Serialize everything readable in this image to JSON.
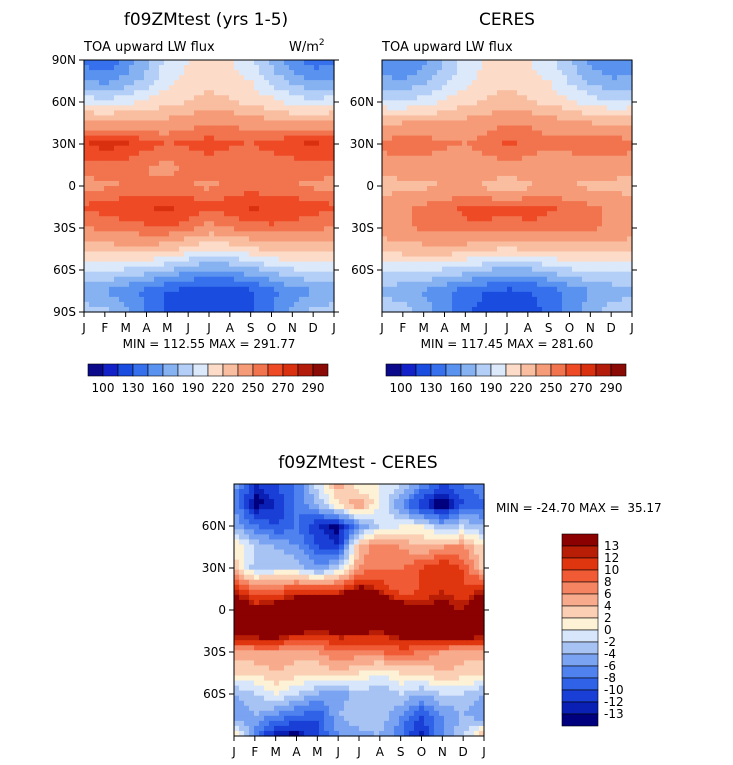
{
  "chart_data": [
    {
      "type": "heatmap",
      "title": "f09ZMtest (yrs 1-5)",
      "subtitle": "TOA upward LW flux",
      "units_base": "W/m",
      "units_exp": "2",
      "x_tick_labels": [
        "J",
        "F",
        "M",
        "A",
        "M",
        "J",
        "J",
        "A",
        "S",
        "O",
        "N",
        "D",
        "J"
      ],
      "y_tick_labels": [
        "90N",
        "60N",
        "30N",
        "0",
        "30S",
        "60S",
        "90S"
      ],
      "ylim": [
        -90,
        90
      ],
      "stats": "MIN = 112.55 MAX = 291.77",
      "min": 112.55,
      "max": 291.77,
      "colorbar_labels": [
        "100",
        "130",
        "160",
        "190",
        "220",
        "250",
        "270",
        "290"
      ],
      "grid": [
        [
          140,
          130,
          150,
          170,
          195,
          205,
          210,
          205,
          195,
          170,
          150,
          135,
          140
        ],
        [
          160,
          155,
          165,
          180,
          200,
          210,
          215,
          212,
          205,
          185,
          170,
          160,
          160
        ],
        [
          200,
          195,
          200,
          210,
          215,
          220,
          225,
          222,
          215,
          210,
          200,
          195,
          200
        ],
        [
          240,
          242,
          240,
          238,
          240,
          245,
          250,
          248,
          245,
          240,
          238,
          240,
          240
        ],
        [
          270,
          275,
          272,
          265,
          260,
          262,
          265,
          262,
          260,
          265,
          270,
          272,
          270
        ],
        [
          255,
          258,
          255,
          250,
          248,
          252,
          255,
          252,
          250,
          252,
          255,
          258,
          255
        ],
        [
          245,
          248,
          250,
          250,
          252,
          250,
          248,
          252,
          255,
          252,
          250,
          248,
          245
        ],
        [
          262,
          265,
          268,
          270,
          272,
          268,
          262,
          268,
          272,
          270,
          268,
          265,
          262
        ],
        [
          250,
          252,
          255,
          258,
          260,
          255,
          245,
          250,
          255,
          258,
          255,
          252,
          250
        ],
        [
          225,
          228,
          230,
          232,
          225,
          215,
          205,
          210,
          218,
          225,
          228,
          226,
          225
        ],
        [
          190,
          192,
          188,
          182,
          175,
          165,
          160,
          162,
          170,
          180,
          188,
          192,
          190
        ],
        [
          160,
          158,
          150,
          140,
          130,
          122,
          118,
          120,
          128,
          140,
          152,
          158,
          160
        ],
        [
          185,
          180,
          165,
          145,
          125,
          118,
          115,
          118,
          125,
          145,
          165,
          180,
          185
        ]
      ]
    },
    {
      "type": "heatmap",
      "title": "CERES",
      "subtitle": "TOA upward LW flux",
      "x_tick_labels": [
        "J",
        "F",
        "M",
        "A",
        "M",
        "J",
        "J",
        "A",
        "S",
        "O",
        "N",
        "D",
        "J"
      ],
      "y_tick_labels": [
        "60N",
        "30N",
        "0",
        "30S",
        "60S"
      ],
      "ylim": [
        -90,
        90
      ],
      "stats": "MIN = 117.45 MAX = 281.60",
      "min": 117.45,
      "max": 281.6,
      "colorbar_labels": [
        "100",
        "130",
        "160",
        "190",
        "220",
        "250",
        "270",
        "290"
      ],
      "grid": [
        [
          150,
          145,
          155,
          175,
          195,
          205,
          210,
          205,
          195,
          175,
          155,
          145,
          150
        ],
        [
          165,
          160,
          170,
          185,
          200,
          212,
          216,
          212,
          205,
          188,
          172,
          162,
          165
        ],
        [
          195,
          192,
          198,
          208,
          215,
          222,
          226,
          222,
          215,
          208,
          198,
          192,
          195
        ],
        [
          232,
          235,
          235,
          235,
          240,
          245,
          250,
          248,
          245,
          240,
          235,
          233,
          232
        ],
        [
          255,
          258,
          258,
          252,
          250,
          255,
          262,
          258,
          252,
          255,
          258,
          258,
          255
        ],
        [
          242,
          245,
          245,
          242,
          240,
          245,
          248,
          245,
          242,
          242,
          245,
          245,
          242
        ],
        [
          228,
          230,
          232,
          235,
          238,
          232,
          225,
          232,
          238,
          235,
          232,
          230,
          228
        ],
        [
          245,
          248,
          252,
          258,
          262,
          265,
          262,
          265,
          262,
          258,
          252,
          248,
          245
        ],
        [
          245,
          248,
          252,
          255,
          258,
          258,
          255,
          258,
          255,
          255,
          252,
          248,
          245
        ],
        [
          225,
          228,
          230,
          232,
          228,
          222,
          218,
          222,
          225,
          228,
          228,
          226,
          225
        ],
        [
          195,
          195,
          192,
          188,
          182,
          175,
          170,
          172,
          180,
          188,
          192,
          195,
          195
        ],
        [
          168,
          165,
          158,
          148,
          138,
          130,
          126,
          128,
          136,
          148,
          160,
          166,
          168
        ],
        [
          190,
          185,
          170,
          150,
          132,
          125,
          122,
          125,
          132,
          150,
          170,
          185,
          190
        ]
      ]
    },
    {
      "type": "heatmap",
      "title": "f09ZMtest - CERES",
      "x_tick_labels": [
        "J",
        "F",
        "M",
        "A",
        "M",
        "J",
        "J",
        "A",
        "S",
        "O",
        "N",
        "D",
        "J"
      ],
      "y_tick_labels": [
        "60N",
        "30N",
        "0",
        "30S",
        "60S"
      ],
      "ylim": [
        -90,
        90
      ],
      "stats": "MIN = -24.70 MAX =  35.17",
      "min": -24.7,
      "max": 35.17,
      "colorbar_labels": [
        "13",
        "12",
        "10",
        "8",
        "6",
        "4",
        "2",
        "0",
        "-2",
        "-4",
        "-6",
        "-8",
        "-10",
        "-12",
        "-13"
      ],
      "grid": [
        [
          -5,
          -12,
          -10,
          -8,
          -1,
          5,
          0,
          0,
          -2,
          -6,
          -10,
          -8,
          -6
        ],
        [
          -6,
          -14,
          -12,
          -8,
          -4,
          2,
          6,
          0,
          -6,
          -12,
          -15,
          -10,
          -9
        ],
        [
          -4,
          -8,
          -10,
          -8,
          -12,
          -14,
          -6,
          -2,
          0,
          0,
          -4,
          -2,
          -4
        ],
        [
          2,
          -2,
          -4,
          -6,
          -10,
          -12,
          4,
          8,
          6,
          4,
          6,
          6,
          2
        ],
        [
          3,
          -3,
          -2,
          -2,
          -6,
          -2,
          6,
          8,
          8,
          10,
          12,
          10,
          3
        ],
        [
          12,
          8,
          8,
          10,
          10,
          10,
          14,
          12,
          8,
          10,
          12,
          10,
          12
        ],
        [
          18,
          14,
          16,
          18,
          20,
          20,
          22,
          18,
          16,
          14,
          14,
          13,
          18
        ],
        [
          15,
          16,
          17,
          14,
          13,
          14,
          14,
          13,
          15,
          16,
          17,
          18,
          15
        ],
        [
          6,
          6,
          6,
          5,
          6,
          8,
          7,
          8,
          9,
          8,
          6,
          5,
          6
        ],
        [
          2,
          2,
          4,
          3,
          2,
          4,
          2,
          0,
          2,
          2,
          4,
          3,
          2
        ],
        [
          -4,
          -2,
          0,
          -2,
          -4,
          -6,
          -2,
          -4,
          -2,
          -4,
          -2,
          -2,
          -4
        ],
        [
          -6,
          -4,
          -6,
          -8,
          -10,
          -4,
          -2,
          -2,
          -6,
          -10,
          -6,
          -4,
          -6
        ],
        [
          4,
          -8,
          -13,
          -14,
          -10,
          -6,
          -5,
          -4,
          -8,
          -13,
          -6,
          -2,
          4
        ]
      ]
    }
  ],
  "colors": {
    "abs_palette": [
      "#0a0a8a",
      "#1222c8",
      "#1a4ce0",
      "#3670ec",
      "#5a92f0",
      "#87b2f2",
      "#b3cff7",
      "#dce9fa",
      "#fcdcc8",
      "#f9bda0",
      "#f69b78",
      "#f2744e",
      "#ee4a26",
      "#d9300f",
      "#b31c0a",
      "#8a0a05"
    ],
    "diff_palette": [
      "#00007f",
      "#0a1fb3",
      "#1a3fd6",
      "#2f62e7",
      "#4f82ee",
      "#7aa3f1",
      "#a7c3f4",
      "#d7e6fa",
      "#fdf2d6",
      "#fbcfb4",
      "#f8aa8c",
      "#f48462",
      "#f05b36",
      "#e0360f",
      "#b81d05",
      "#8b0000"
    ]
  }
}
